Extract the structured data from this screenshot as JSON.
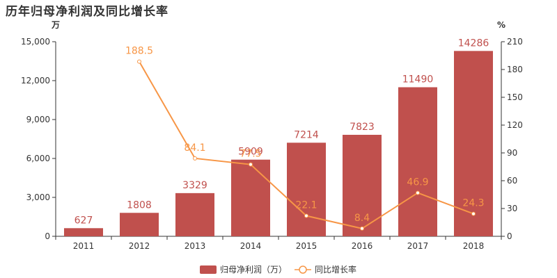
{
  "chart_data": {
    "type": "bar+line",
    "title": "历年归母净利润及同比增长率",
    "categories": [
      "2011",
      "2012",
      "2013",
      "2014",
      "2015",
      "2016",
      "2017",
      "2018"
    ],
    "series": [
      {
        "name": "归母净利润（万）",
        "type": "bar",
        "axis": "left",
        "values": [
          627,
          1808,
          3329,
          5909,
          7214,
          7823,
          11490,
          14286
        ],
        "labels": [
          "627",
          "1808",
          "3329",
          "5909",
          "7214",
          "7823",
          "11490",
          "14286"
        ]
      },
      {
        "name": "同比增长率",
        "type": "line",
        "axis": "right",
        "values": [
          null,
          188.5,
          84.1,
          77.5,
          22.1,
          8.4,
          46.9,
          24.3
        ],
        "labels": [
          null,
          "188.5",
          "84.1",
          "77.5",
          "22.1",
          "8.4",
          "46.9",
          "24.3"
        ]
      }
    ],
    "left_axis": {
      "unit": "万",
      "min": 0,
      "max": 15000,
      "ticks": [
        "0",
        "3,000",
        "6,000",
        "9,000",
        "12,000",
        "15,000"
      ]
    },
    "right_axis": {
      "unit": "%",
      "min": 0,
      "max": 210,
      "ticks": [
        "0",
        "30",
        "60",
        "90",
        "120",
        "150",
        "180",
        "210"
      ]
    },
    "grid": false,
    "legend_position": "bottom-center",
    "colors": {
      "bar": "#c0504d",
      "line": "#f79646",
      "axis": "#333333"
    }
  }
}
